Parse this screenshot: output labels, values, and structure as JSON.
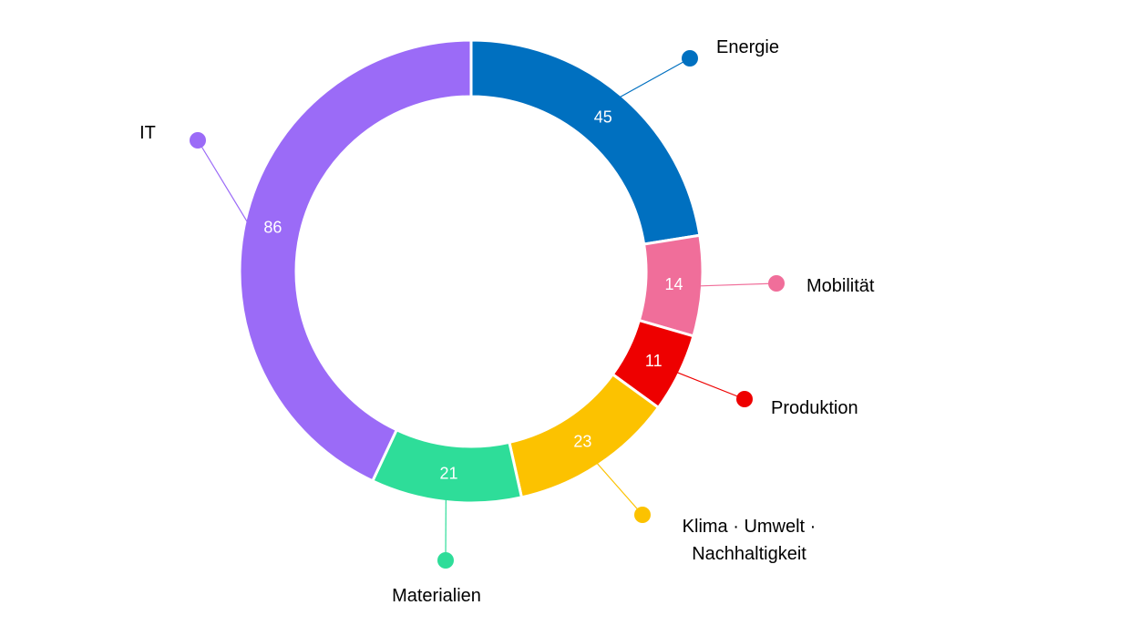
{
  "chart_data": {
    "type": "pie",
    "variant": "donut",
    "legend": "none",
    "categories": [
      "Energie",
      "Mobilität",
      "Produktion",
      "Klima · Umwelt · Nachhaltigkeit",
      "Materialien",
      "IT"
    ],
    "label_lines": [
      [
        "Energie"
      ],
      [
        "Mobilität"
      ],
      [
        "Produktion"
      ],
      [
        "Klima · Umwelt ·",
        "Nachhaltigkeit"
      ],
      [
        "Materialien"
      ],
      [
        "IT"
      ]
    ],
    "values": [
      45,
      14,
      11,
      23,
      21,
      86
    ],
    "colors": [
      "#0070C0",
      "#F06E9A",
      "#EE0000",
      "#FCC200",
      "#2EDD99",
      "#9B6BF7"
    ]
  }
}
